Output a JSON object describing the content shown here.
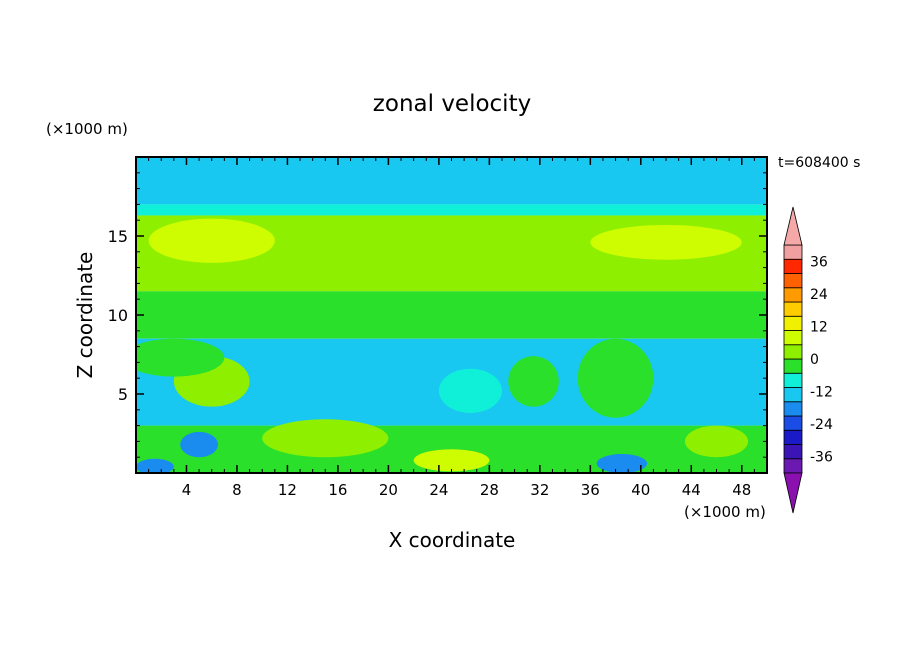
{
  "chart_data": {
    "type": "heatmap",
    "title": "zonal velocity",
    "xlabel": "X coordinate",
    "ylabel": "Z coordinate",
    "x_unit": "(×1000 m)",
    "y_unit": "(×1000 m)",
    "time_label": "t=608400 s",
    "xlim": [
      0,
      50
    ],
    "ylim": [
      0,
      20
    ],
    "x_ticks": [
      4,
      8,
      12,
      16,
      20,
      24,
      28,
      32,
      36,
      40,
      44,
      48
    ],
    "y_ticks": [
      5,
      10,
      15
    ],
    "colorbar": {
      "levels": [
        -42,
        -36,
        -30,
        -24,
        -18,
        -12,
        -6,
        0,
        6,
        12,
        18,
        24,
        30,
        36,
        42
      ],
      "labels": [
        "36",
        "24",
        "12",
        "0",
        "-12",
        "-24",
        "-36"
      ],
      "colors": [
        "#6a1ab0",
        "#3a14b4",
        "#1a1ac8",
        "#1a4ce6",
        "#1a8cf0",
        "#18c8f0",
        "#10f0d8",
        "#2ae02a",
        "#8ef000",
        "#cefc00",
        "#f0f000",
        "#ffcc00",
        "#ff9a00",
        "#ff6000",
        "#ff2800",
        "#f0a0a0"
      ],
      "under_color": "#8a10b0",
      "over_color": "#f4a8a8"
    },
    "bands": [
      {
        "z_range": [
          17,
          20
        ],
        "value": -9
      },
      {
        "z_range": [
          16.3,
          17
        ],
        "value": -2
      },
      {
        "z_range": [
          11.5,
          16.3
        ],
        "value": 11
      },
      {
        "z_range": [
          8.5,
          11.5
        ],
        "value": 3
      },
      {
        "z_range": [
          3,
          8.5
        ],
        "value": -8
      },
      {
        "z_range": [
          0,
          3
        ],
        "value": 2
      }
    ],
    "features": [
      {
        "x": 6,
        "z": 14.7,
        "rx": 5,
        "rz": 1.4,
        "value": 15
      },
      {
        "x": 42,
        "z": 14.6,
        "rx": 6,
        "rz": 1.1,
        "value": 14
      },
      {
        "x": 20,
        "z": 13.2,
        "rx": 8,
        "rz": 1.3,
        "value": 9
      },
      {
        "x": 6,
        "z": 5.8,
        "rx": 3,
        "rz": 1.6,
        "value": 6
      },
      {
        "x": 3,
        "z": 7.3,
        "rx": 4,
        "rz": 1.2,
        "value": 1
      },
      {
        "x": 38,
        "z": 6,
        "rx": 3,
        "rz": 2.5,
        "value": 4
      },
      {
        "x": 31.5,
        "z": 5.8,
        "rx": 2,
        "rz": 1.6,
        "value": 2
      },
      {
        "x": 26.5,
        "z": 5.2,
        "rx": 2.5,
        "rz": 1.4,
        "value": -3
      },
      {
        "x": 20,
        "z": 5.2,
        "rx": 2.5,
        "rz": 1,
        "value": -17
      },
      {
        "x": 18,
        "z": 5,
        "rx": 6,
        "rz": 2,
        "value": -12
      },
      {
        "x": 5,
        "z": 1.8,
        "rx": 1.5,
        "rz": 0.8,
        "value": -18
      },
      {
        "x": 15,
        "z": 2.2,
        "rx": 5,
        "rz": 1.2,
        "value": 6
      },
      {
        "x": 25,
        "z": 0.8,
        "rx": 3,
        "rz": 0.7,
        "value": 12
      },
      {
        "x": 38.5,
        "z": 0.6,
        "rx": 2,
        "rz": 0.6,
        "value": -14
      },
      {
        "x": 46,
        "z": 2,
        "rx": 2.5,
        "rz": 1,
        "value": 7
      },
      {
        "x": 47,
        "z": 6.8,
        "rx": 3,
        "rz": 1.5,
        "value": -11
      },
      {
        "x": 1.5,
        "z": 0.4,
        "rx": 1.5,
        "rz": 0.5,
        "value": -15
      }
    ]
  }
}
